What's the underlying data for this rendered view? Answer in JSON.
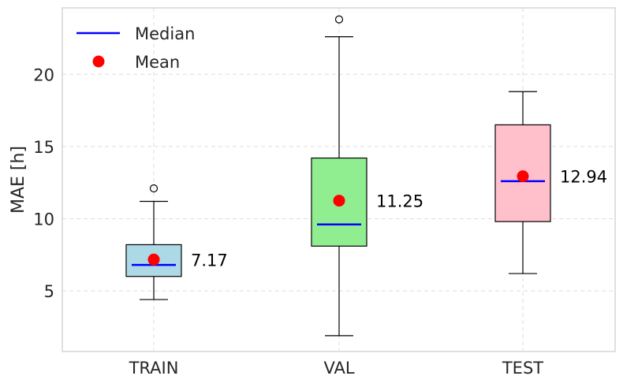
{
  "chart_data": {
    "type": "box",
    "title": "",
    "xlabel": "",
    "ylabel": "MAE [h]",
    "ylim": [
      0.8,
      24.6
    ],
    "yticks": [
      5,
      10,
      15,
      20
    ],
    "grid": true,
    "legend": {
      "placement": "top-left",
      "entries": [
        {
          "label": "Median",
          "marker": "line",
          "color": "#0000ff"
        },
        {
          "label": "Mean",
          "marker": "circle",
          "color": "#ff0000"
        }
      ]
    },
    "categories": [
      "TRAIN",
      "VAL",
      "TEST"
    ],
    "boxes": [
      {
        "category": "TRAIN",
        "whisker_low": 4.4,
        "q1": 6.0,
        "median": 6.8,
        "q3": 8.2,
        "whisker_high": 11.2,
        "outliers": [
          12.1
        ],
        "mean": 7.17,
        "mean_label": "7.17",
        "fill": "#add8e6"
      },
      {
        "category": "VAL",
        "whisker_low": 1.9,
        "q1": 8.1,
        "median": 9.6,
        "q3": 14.2,
        "whisker_high": 22.6,
        "outliers": [
          23.8
        ],
        "mean": 11.25,
        "mean_label": "11.25",
        "fill": "#90ee90"
      },
      {
        "category": "TEST",
        "whisker_low": 6.2,
        "q1": 9.8,
        "median": 12.6,
        "q3": 16.5,
        "whisker_high": 18.8,
        "outliers": [],
        "mean": 12.94,
        "mean_label": "12.94",
        "fill": "#ffc0cb"
      }
    ],
    "colors": {
      "median": "#0000ff",
      "mean": "#ff0000",
      "box_edge": "#000000",
      "grid": "#dddddd",
      "frame": "#cccccc"
    }
  }
}
